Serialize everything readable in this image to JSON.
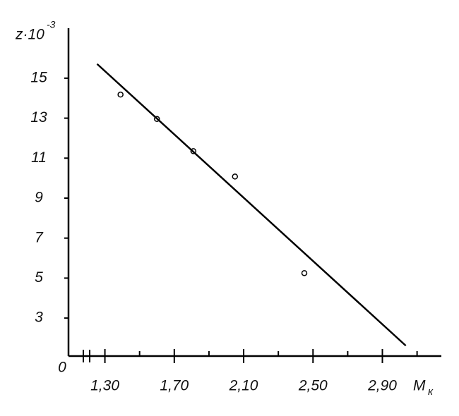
{
  "chart_data": {
    "type": "scatter",
    "y_label": "z·10",
    "y_label_sup": "-3",
    "x_label": "M",
    "x_label_sub": "к",
    "origin_label": "0",
    "xlim": [
      1.09,
      3.24
    ],
    "ylim": [
      1.1,
      17.5
    ],
    "xticks": [
      {
        "value": 1.3,
        "label": "1,30"
      },
      {
        "value": 1.7,
        "label": "1,70"
      },
      {
        "value": 2.1,
        "label": "2,10"
      },
      {
        "value": 2.5,
        "label": "2,50"
      },
      {
        "value": 2.9,
        "label": "2,90"
      }
    ],
    "x_minor_ticks": [
      1.5,
      1.9,
      2.3,
      2.7,
      3.1
    ],
    "yticks": [
      3,
      5,
      7,
      9,
      11,
      13,
      15
    ],
    "color": "#000000",
    "points": {
      "x": [
        1.39,
        1.6,
        1.81,
        2.05,
        2.45
      ],
      "values": [
        14.18,
        12.96,
        11.35,
        10.08,
        5.25
      ]
    },
    "line": {
      "x": [
        1.255,
        3.035
      ],
      "values": [
        15.71,
        1.62
      ]
    }
  }
}
